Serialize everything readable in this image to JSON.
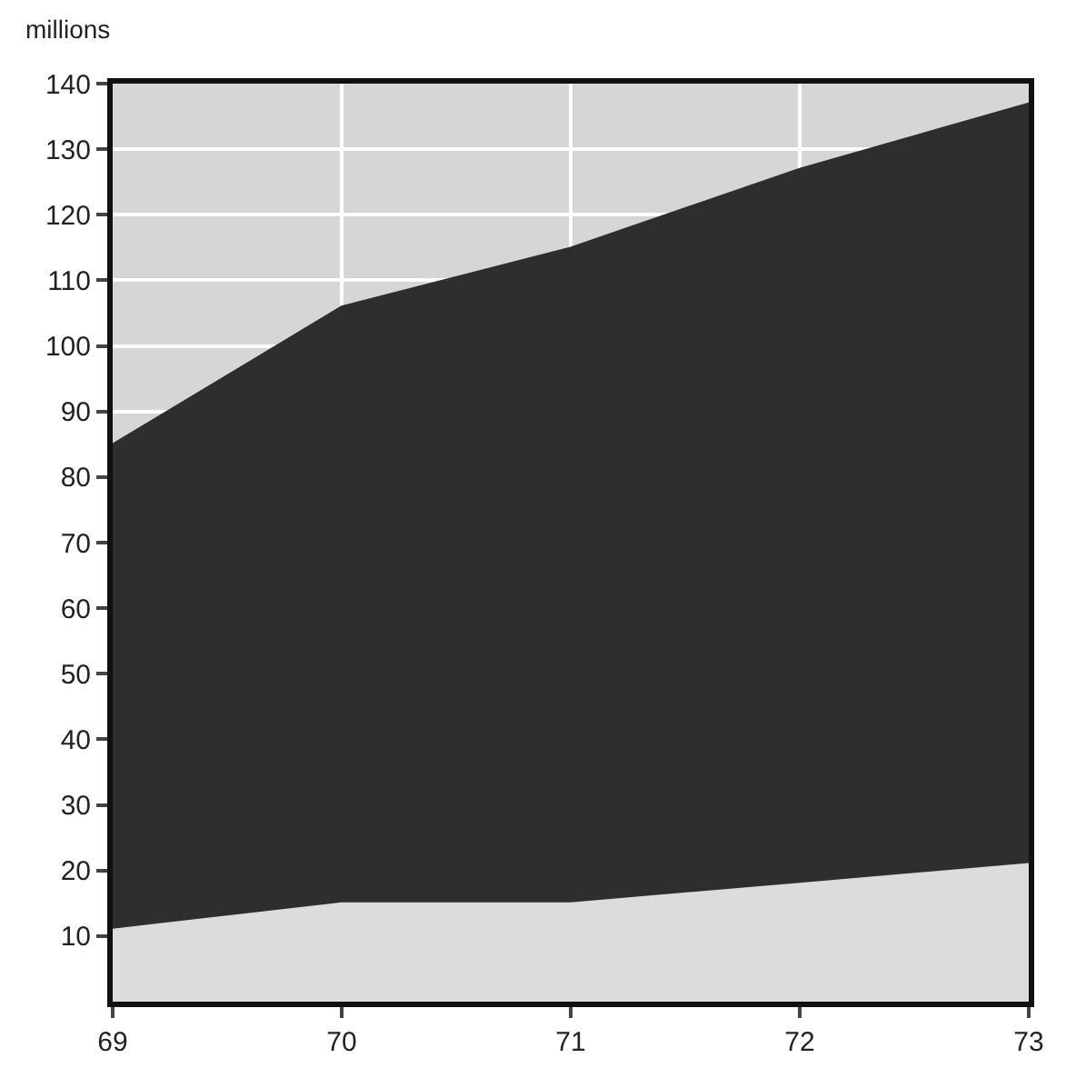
{
  "chart_data": {
    "type": "area",
    "ylabel": "millions",
    "stacked": true,
    "x": [
      69,
      70,
      71,
      72,
      73
    ],
    "series": [
      {
        "color": "#dcdcdc",
        "values": [
          11,
          15,
          15,
          18,
          21
        ]
      },
      {
        "color": "#2e2e2e",
        "values": [
          74,
          91,
          100,
          109,
          116
        ]
      }
    ],
    "xlim": [
      69,
      73
    ],
    "xticks": [
      69,
      70,
      71,
      72,
      73
    ],
    "ylim": [
      0,
      140
    ],
    "yticks": [
      10,
      20,
      30,
      40,
      50,
      60,
      70,
      80,
      90,
      100,
      110,
      120,
      130,
      140
    ],
    "grid": true
  }
}
